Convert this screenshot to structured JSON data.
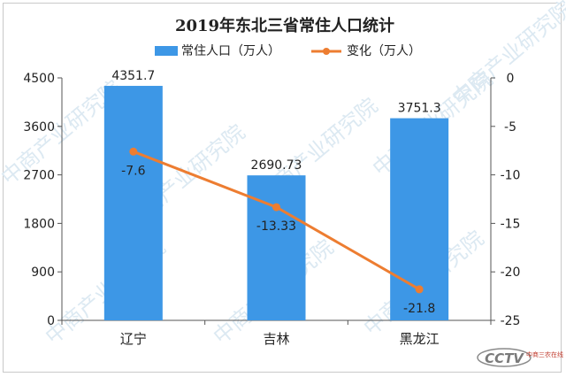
{
  "chart_data": {
    "type": "bar+line",
    "title": "2019年东北三省常住人口统计",
    "categories": [
      "辽宁",
      "吉林",
      "黑龙江"
    ],
    "series": [
      {
        "name": "常住人口（万人）",
        "type": "bar",
        "axis": "left",
        "values": [
          4351.7,
          2690.73,
          3751.3
        ],
        "labels": [
          "4351.7",
          "2690.73",
          "3751.3"
        ],
        "color": "#3d97e6"
      },
      {
        "name": "变化（万人）",
        "type": "line",
        "axis": "right",
        "values": [
          -7.6,
          -13.33,
          -21.8
        ],
        "labels": [
          "-7.6",
          "-13.33",
          "-21.8"
        ],
        "color": "#ed7d31"
      }
    ],
    "y_left": {
      "min": 0,
      "max": 4500,
      "ticks": [
        0,
        900,
        1800,
        2700,
        3600,
        4500
      ]
    },
    "y_right": {
      "min": -25,
      "max": 0,
      "ticks": [
        0,
        -5,
        -10,
        -15,
        -20,
        -25
      ]
    },
    "legend": "top-center",
    "grid": false
  },
  "watermark": {
    "text": "中商产业研究院",
    "logo": "CCTV",
    "logo_sub": "中商三农在线"
  }
}
